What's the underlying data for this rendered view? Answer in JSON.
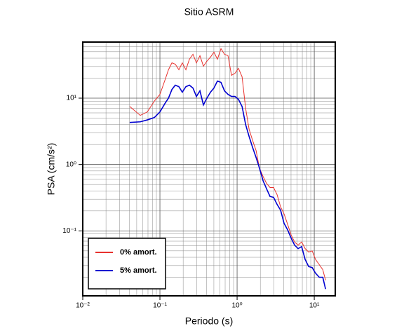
{
  "chart_data": {
    "type": "line",
    "title": "Sitio ASRM",
    "xlabel": "Periodo (s)",
    "ylabel": "PSA (cm/s²)",
    "xscale": "log",
    "yscale": "log",
    "grid": true,
    "legend": "lower left",
    "xlim": [
      0.01,
      18.7
    ],
    "ylim": [
      0.0105,
      70
    ],
    "xticks": [
      {
        "value": 0.01,
        "label": "10⁻²"
      },
      {
        "value": 0.1,
        "label": "10⁻¹"
      },
      {
        "value": 1,
        "label": "10⁰"
      },
      {
        "value": 10,
        "label": "10¹"
      }
    ],
    "yticks": [
      {
        "value": 0.1,
        "label": "10⁻¹"
      },
      {
        "value": 1,
        "label": "10⁰"
      },
      {
        "value": 10,
        "label": "10¹"
      }
    ],
    "xminorticks": [
      0.02,
      0.03,
      0.04,
      0.05,
      0.06,
      0.07,
      0.08,
      0.09,
      0.2,
      0.3,
      0.4,
      0.5,
      0.6,
      0.7,
      0.8,
      0.9,
      2,
      3,
      4,
      5,
      6,
      7,
      8,
      9
    ],
    "yminorticks": [
      0.02,
      0.03,
      0.04,
      0.05,
      0.06,
      0.07,
      0.08,
      0.09,
      0.2,
      0.3,
      0.4,
      0.5,
      0.6,
      0.7,
      0.8,
      0.9,
      2,
      3,
      4,
      5,
      6,
      7,
      8,
      9,
      20,
      30,
      40,
      50,
      60
    ],
    "x": [
      0.0406,
      0.0556,
      0.0686,
      0.0846,
      0.1,
      0.116,
      0.129,
      0.143,
      0.158,
      0.176,
      0.195,
      0.217,
      0.241,
      0.268,
      0.297,
      0.33,
      0.366,
      0.406,
      0.452,
      0.501,
      0.556,
      0.618,
      0.686,
      0.762,
      0.846,
      0.939,
      1.04,
      1.16,
      1.29,
      1.43,
      1.58,
      1.76,
      1.95,
      2.17,
      2.41,
      2.67,
      2.97,
      3.3,
      3.66,
      4.06,
      4.51,
      5.01,
      5.56,
      6.18,
      6.86,
      7.62,
      8.46,
      9.39,
      10.4,
      11.6,
      12.9,
      14.0
    ],
    "series": [
      {
        "name": "0% amort.",
        "color": "#e8322e",
        "width": 1,
        "values": [
          7.5,
          5.5,
          6.2,
          9,
          11.4,
          18.6,
          26.8,
          34,
          32.5,
          26.8,
          34,
          26.8,
          38.6,
          45.9,
          34,
          43.6,
          30.3,
          36,
          41.6,
          49.3,
          38.6,
          55.7,
          45.9,
          43.6,
          22.1,
          23.7,
          28.2,
          21,
          7.0,
          3.4,
          2.35,
          1.63,
          0.88,
          0.66,
          0.52,
          0.45,
          0.45,
          0.35,
          0.23,
          0.18,
          0.126,
          0.087,
          0.068,
          0.061,
          0.068,
          0.054,
          0.048,
          0.05,
          0.037,
          0.031,
          0.026,
          0.018
        ]
      },
      {
        "name": "5% amort.",
        "color": "#0000d0",
        "width": 1.6,
        "values": [
          4.3,
          4.4,
          4.7,
          5.1,
          6.2,
          8.3,
          10,
          13.5,
          15.7,
          14.9,
          12.3,
          14.9,
          15.7,
          14.2,
          10.6,
          12.9,
          7.9,
          10,
          12.3,
          14.2,
          18.1,
          17.3,
          12.9,
          11.4,
          10.6,
          10.6,
          9.6,
          7.5,
          4.0,
          2.65,
          1.84,
          1.28,
          0.88,
          0.57,
          0.43,
          0.33,
          0.32,
          0.25,
          0.205,
          0.13,
          0.104,
          0.078,
          0.061,
          0.054,
          0.058,
          0.037,
          0.029,
          0.028,
          0.023,
          0.02,
          0.02,
          0.0133
        ]
      }
    ]
  }
}
